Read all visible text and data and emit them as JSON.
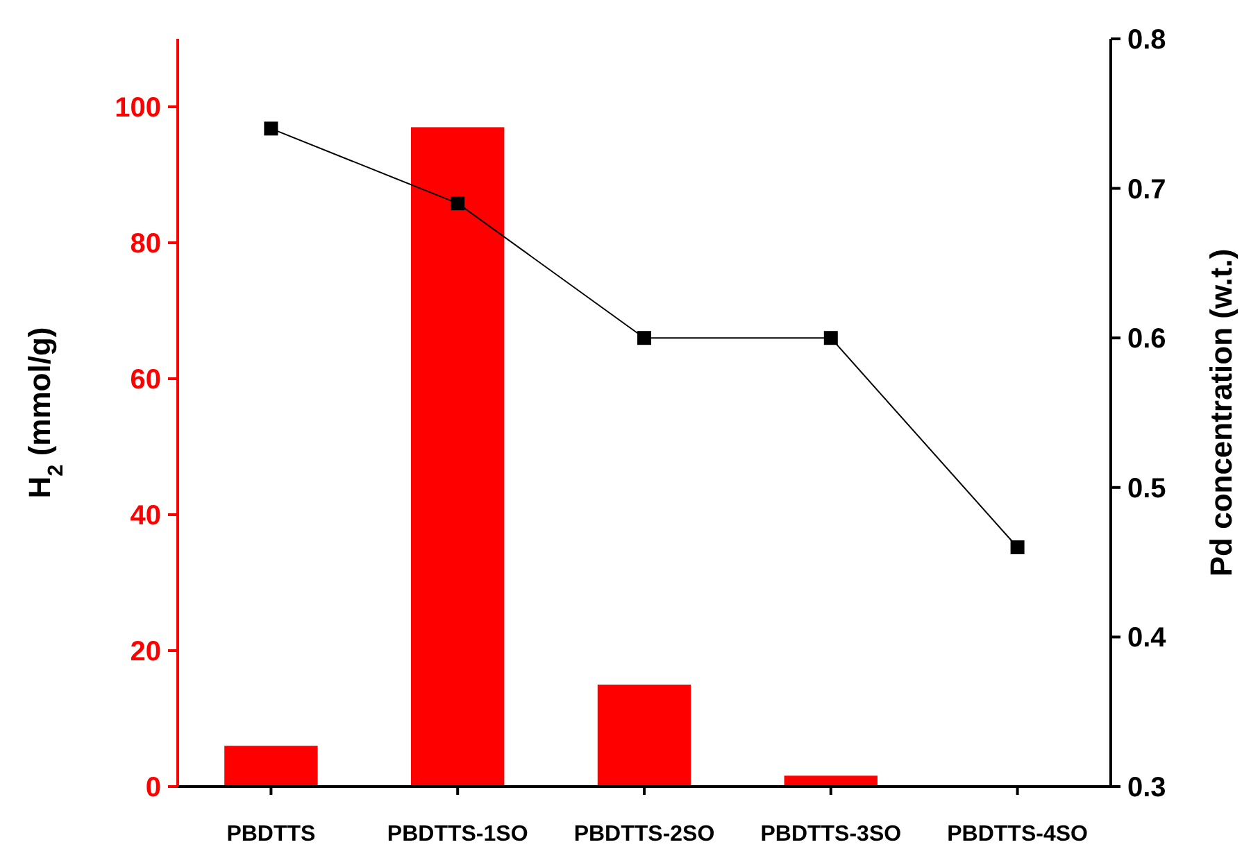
{
  "chart_data": {
    "type": "bar",
    "categories": [
      "PBDTTS",
      "PBDTTS-1SO",
      "PBDTTS-2SO",
      "PBDTTS-3SO",
      "PBDTTS-4SO"
    ],
    "ylabel": "H$_{2}$ (mmol/g)",
    "y2label": "Pd concentration (w.t.)",
    "ylim": [
      0,
      110
    ],
    "yticks": [
      0,
      20,
      40,
      60,
      80,
      100
    ],
    "y2lim": [
      0.3,
      0.8
    ],
    "y2ticks": [
      0.3,
      0.4,
      0.5,
      0.6,
      0.7,
      0.8
    ],
    "series": [
      {
        "color": "#ff0000",
        "values": [
          6,
          97,
          15,
          1.6,
          0
        ]
      },
      {
        "type": "line",
        "axis": "y2",
        "color": "#000000",
        "marker": "square",
        "values": [
          0.74,
          0.69,
          0.6,
          0.6,
          0.46
        ]
      }
    ],
    "grid": false
  }
}
